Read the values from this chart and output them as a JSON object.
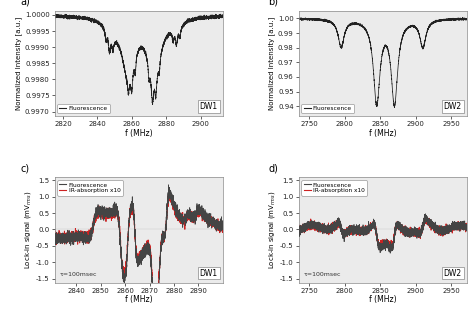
{
  "fig_width": 4.74,
  "fig_height": 3.16,
  "panel_a": {
    "xlim": [
      2815,
      2913
    ],
    "ylim": [
      0.99685,
      1.00012
    ],
    "xticks": [
      2820,
      2840,
      2860,
      2880,
      2900
    ],
    "yticks": [
      0.997,
      0.9975,
      0.998,
      0.9985,
      0.999,
      0.9995,
      1.0
    ],
    "ytick_labels": [
      "0.9970",
      "0.9975",
      "0.9980",
      "0.9985",
      "0.9990",
      "0.9995",
      "1.0000"
    ],
    "ylabel": "Normalized Intensity [a.u.]",
    "xlabel": "f (MHz)",
    "legend": "Fluorescence",
    "dw_label": "DW1"
  },
  "panel_b": {
    "xlim": [
      2735,
      2972
    ],
    "ylim": [
      0.933,
      1.005
    ],
    "xticks": [
      2750,
      2800,
      2850,
      2900,
      2950
    ],
    "yticks": [
      0.94,
      0.95,
      0.96,
      0.97,
      0.98,
      0.99,
      1.0
    ],
    "ytick_labels": [
      "0.94",
      "0.95",
      "0.96",
      "0.97",
      "0.98",
      "0.99",
      "1.00"
    ],
    "ylabel": "Normalized Intensity [a.u.]",
    "xlabel": "f (MHz)",
    "legend": "Fluorescence",
    "dw_label": "DW2"
  },
  "panel_c": {
    "xlim": [
      2831,
      2900
    ],
    "ylim": [
      -1.62,
      1.58
    ],
    "xticks": [
      2840,
      2850,
      2860,
      2870,
      2880,
      2890
    ],
    "yticks": [
      -1.5,
      -1.0,
      -0.5,
      0.0,
      0.5,
      1.0,
      1.5
    ],
    "ytick_labels": [
      "-1.5",
      "-1.0",
      "-0.5",
      "0.0",
      "0.5",
      "1.0",
      "1.5"
    ],
    "ylabel": "Lock-in signal (mV$_{rms}$)",
    "xlabel": "f (MHz)",
    "legend1": "Fluorescence",
    "legend2": "IR-absorption x10",
    "tau_label": "τ=100msec",
    "line_color1": "#444444",
    "line_color2": "#cc2222",
    "dw_label": "DW1"
  },
  "panel_d": {
    "xlim": [
      2735,
      2972
    ],
    "ylim": [
      -1.62,
      1.58
    ],
    "xticks": [
      2750,
      2800,
      2850,
      2900,
      2950
    ],
    "yticks": [
      -1.5,
      -1.0,
      -0.5,
      0.0,
      0.5,
      1.0,
      1.5
    ],
    "ytick_labels": [
      "-1.5",
      "-1.0",
      "-0.5",
      "0.0",
      "0.5",
      "1.0",
      "1.5"
    ],
    "ylabel": "Lock-in signal (mV$_{rms}$)",
    "xlabel": "f (MHz)",
    "legend1": "Fluorescence",
    "legend2": "IR-absorption x10",
    "tau_label": "τ=100msec",
    "line_color1": "#444444",
    "line_color2": "#cc2222",
    "dw_label": "DW2"
  }
}
